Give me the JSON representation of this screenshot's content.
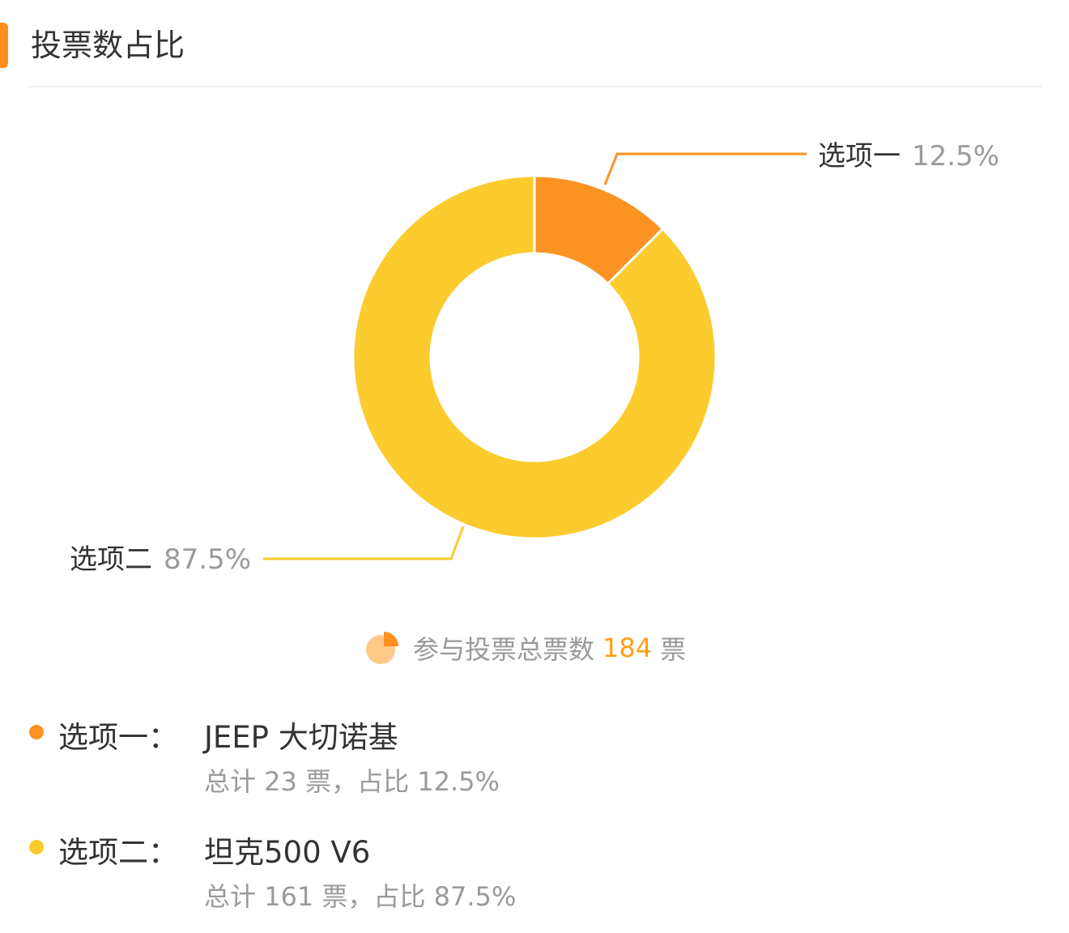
{
  "header": {
    "title": "投票数占比"
  },
  "chart_data": {
    "type": "pie",
    "style": "donut",
    "slices": [
      {
        "label": "选项一",
        "percent_text": "12.5%",
        "value": 23,
        "color": "#fb9322"
      },
      {
        "label": "选项二",
        "percent_text": "87.5%",
        "value": 161,
        "color": "#fccb2e"
      }
    ]
  },
  "summary": {
    "prefix": "参与投票总票数",
    "count": "184",
    "unit": "票",
    "icon": "pie-chart-icon"
  },
  "options": [
    {
      "label": "选项一：",
      "name": "JEEP 大切诺基",
      "stat": "总计 23 票，占比 12.5%",
      "color": "#fb9322"
    },
    {
      "label": "选项二：",
      "name": "坦克500 V6",
      "stat": "总计 161 票，占比 87.5%",
      "color": "#fccb2e"
    }
  ]
}
